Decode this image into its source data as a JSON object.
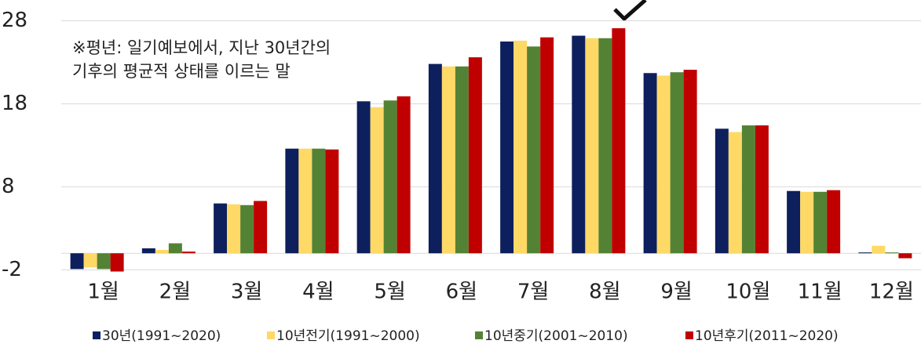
{
  "chart_data": {
    "type": "bar",
    "annotation": [
      "※평년: 일기예보에서, 지난 30년간의",
      "기후의 평균적 상태를 이르는 말"
    ],
    "categories": [
      "1월",
      "2월",
      "3월",
      "4월",
      "5월",
      "6월",
      "7월",
      "8월",
      "9월",
      "10월",
      "11월",
      "12월"
    ],
    "series": [
      {
        "name": "30년(1991~2020)",
        "color": "#0d1f5c",
        "values": [
          -1.9,
          0.6,
          6.0,
          12.6,
          18.3,
          22.8,
          25.5,
          26.2,
          21.7,
          15.0,
          7.5,
          0.1
        ]
      },
      {
        "name": "10년전기(1991~2000)",
        "color": "#ffd966",
        "values": [
          -1.7,
          0.4,
          5.9,
          12.6,
          17.6,
          22.5,
          25.6,
          25.9,
          21.4,
          14.6,
          7.4,
          0.9
        ]
      },
      {
        "name": "10년중기(2001~2010)",
        "color": "#548235",
        "values": [
          -1.9,
          1.2,
          5.8,
          12.6,
          18.4,
          22.5,
          24.9,
          25.9,
          21.8,
          15.4,
          7.4,
          0.1
        ]
      },
      {
        "name": "10년후기(2011~2020)",
        "color": "#c00000",
        "values": [
          -2.2,
          0.2,
          6.3,
          12.5,
          18.9,
          23.6,
          26.0,
          27.1,
          22.1,
          15.4,
          7.6,
          -0.6
        ]
      }
    ],
    "ylim": [
      -3,
      30.5
    ],
    "yticks": [
      28,
      18,
      8,
      -2
    ],
    "grid": true
  }
}
